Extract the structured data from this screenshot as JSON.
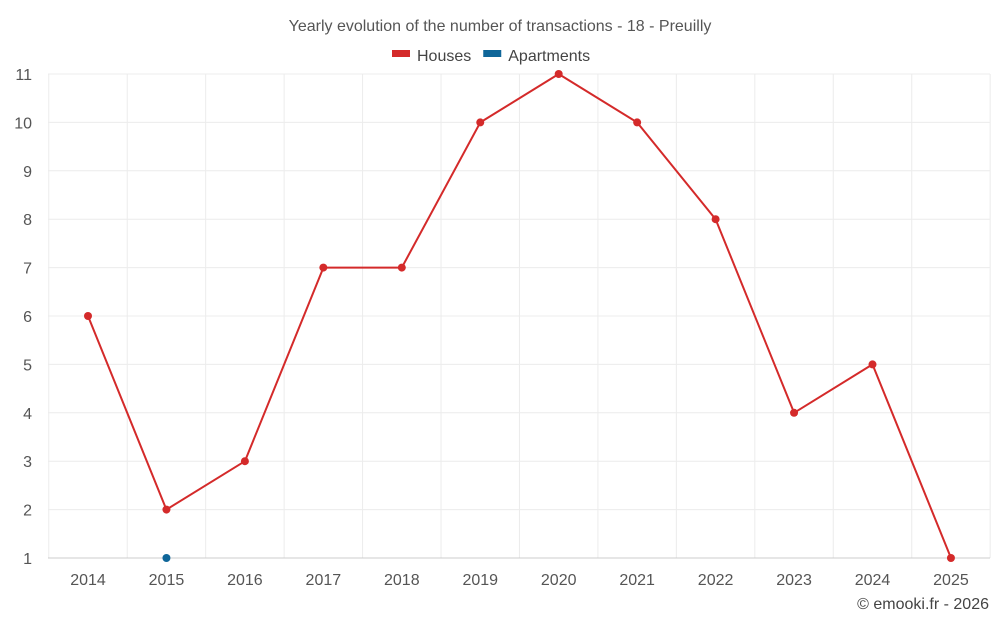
{
  "chart_data": {
    "type": "line",
    "title": "Yearly evolution of the number of transactions - 18 - Preuilly",
    "xlabel": "",
    "ylabel": "",
    "categories": [
      "2014",
      "2015",
      "2016",
      "2017",
      "2018",
      "2019",
      "2020",
      "2021",
      "2022",
      "2023",
      "2024",
      "2025"
    ],
    "ylim": [
      1,
      11
    ],
    "yticks": [
      1,
      2,
      3,
      4,
      5,
      6,
      7,
      8,
      9,
      10,
      11
    ],
    "grid": true,
    "legend_position": "top-center",
    "series": [
      {
        "name": "Houses",
        "color": "#d42a2a",
        "values": [
          6,
          2,
          3,
          7,
          7,
          10,
          11,
          10,
          8,
          4,
          5,
          1
        ]
      },
      {
        "name": "Apartments",
        "color": "#0f6699",
        "values": [
          null,
          1,
          null,
          null,
          null,
          null,
          null,
          null,
          null,
          null,
          null,
          null
        ]
      }
    ]
  },
  "credit": "© emooki.fr - 2026"
}
